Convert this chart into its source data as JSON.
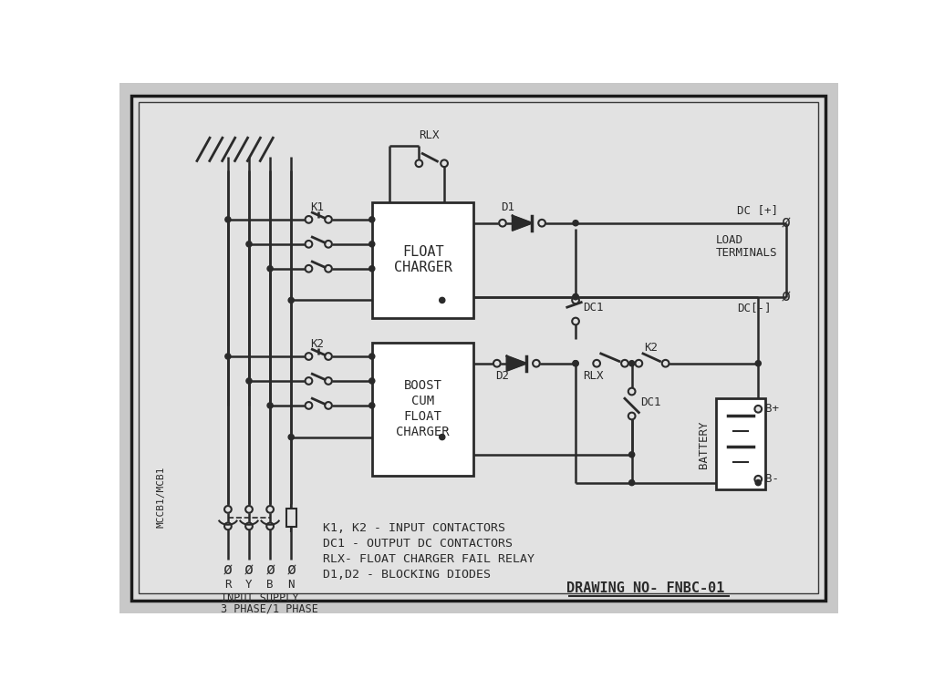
{
  "bg_color": "#d8d8d8",
  "inner_bg": "#e8e8e8",
  "line_color": "#2a2a2a",
  "title_notes": [
    "K1, K2 - INPUT CONTACTORS",
    "DC1 - OUTPUT DC CONTACTORS",
    "RLX- FLOAT CHARGER FAIL RELAY",
    "D1,D2 - BLOCKING DIODES"
  ],
  "drawing_no": "DRAWING NO- FNBC-01",
  "float_charger_label": [
    "FLOAT",
    "CHARGER"
  ],
  "boost_charger_label": [
    "BOOST",
    "CUM",
    "FLOAT",
    "CHARGER"
  ],
  "battery_label": "BATTERY",
  "load_terminals": [
    "LOAD",
    "TERMINALS"
  ],
  "dc_plus": "DC [+]",
  "dc_minus": "DC[-]",
  "b_plus": "B+",
  "b_minus": "B-",
  "mccb_label": "MCCB1/MCB1",
  "input_labels": [
    "R",
    "Y",
    "B",
    "N"
  ],
  "input_supply": [
    "INPUT SUPPLY",
    "3 PHASE/1 PHASE"
  ],
  "k1_label": "K1",
  "k2_label": "K2",
  "rlx_label": "RLX",
  "d1_label": "D1",
  "d2_label": "D2",
  "dc1_label": "DC1",
  "k2_relay_label": "K2"
}
